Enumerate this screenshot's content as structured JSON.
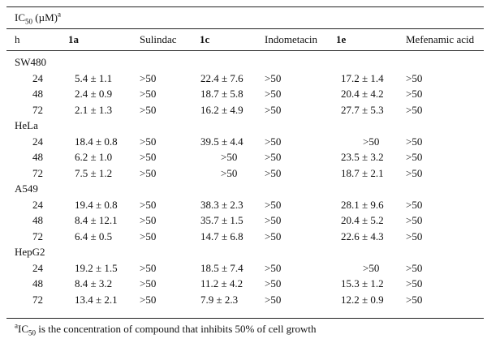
{
  "table": {
    "caption_base": "IC",
    "caption_sub": "50",
    "caption_unit": " (µM)",
    "caption_mark": "a",
    "columns": [
      "h",
      "1a",
      "Sulindac",
      "1c",
      "Indometacin",
      "1e",
      "Mefenamic acid"
    ],
    "groups": [
      {
        "name": "SW480",
        "rows": [
          {
            "h": "24",
            "c1a": "5.4 ± 1.1",
            "sulindac": ">50",
            "c1c": "22.4 ± 7.6",
            "indometacin": ">50",
            "c1e": "17.2 ± 1.4",
            "mefenamic": ">50"
          },
          {
            "h": "48",
            "c1a": "2.4 ± 0.9",
            "sulindac": ">50",
            "c1c": "18.7 ± 5.8",
            "indometacin": ">50",
            "c1e": "20.4 ± 4.2",
            "mefenamic": ">50"
          },
          {
            "h": "72",
            "c1a": "2.1 ± 1.3",
            "sulindac": ">50",
            "c1c": "16.2 ± 4.9",
            "indometacin": ">50",
            "c1e": "27.7 ± 5.3",
            "mefenamic": ">50"
          }
        ]
      },
      {
        "name": "HeLa",
        "rows": [
          {
            "h": "24",
            "c1a": "18.4 ± 0.8",
            "sulindac": ">50",
            "c1c": "39.5 ± 4.4",
            "indometacin": ">50",
            "c1e": ">50",
            "mefenamic": ">50"
          },
          {
            "h": "48",
            "c1a": "6.2 ± 1.0",
            "sulindac": ">50",
            "c1c": ">50",
            "indometacin": ">50",
            "c1e": "23.5 ± 3.2",
            "mefenamic": ">50"
          },
          {
            "h": "72",
            "c1a": "7.5 ± 1.2",
            "sulindac": ">50",
            "c1c": ">50",
            "indometacin": ">50",
            "c1e": "18.7 ± 2.1",
            "mefenamic": ">50"
          }
        ]
      },
      {
        "name": "A549",
        "rows": [
          {
            "h": "24",
            "c1a": "19.4 ± 0.8",
            "sulindac": ">50",
            "c1c": "38.3 ± 2.3",
            "indometacin": ">50",
            "c1e": "28.1 ± 9.6",
            "mefenamic": ">50"
          },
          {
            "h": "48",
            "c1a": "8.4 ± 12.1",
            "sulindac": ">50",
            "c1c": "35.7 ± 1.5",
            "indometacin": ">50",
            "c1e": "20.4 ± 5.2",
            "mefenamic": ">50"
          },
          {
            "h": "72",
            "c1a": "6.4 ± 0.5",
            "sulindac": ">50",
            "c1c": "14.7 ± 6.8",
            "indometacin": ">50",
            "c1e": "22.6 ± 4.3",
            "mefenamic": ">50"
          }
        ]
      },
      {
        "name": "HepG2",
        "rows": [
          {
            "h": "24",
            "c1a": "19.2 ± 1.5",
            "sulindac": ">50",
            "c1c": "18.5 ± 7.4",
            "indometacin": ">50",
            "c1e": ">50",
            "mefenamic": ">50"
          },
          {
            "h": "48",
            "c1a": "8.4 ± 3.2",
            "sulindac": ">50",
            "c1c": "11.2 ± 4.2",
            "indometacin": ">50",
            "c1e": "15.3 ± 1.2",
            "mefenamic": ">50"
          },
          {
            "h": "72",
            "c1a": "13.4 ± 2.1",
            "sulindac": ">50",
            "c1c": "7.9 ± 2.3",
            "indometacin": ">50",
            "c1e": "12.2 ± 0.9",
            "mefenamic": ">50"
          }
        ]
      }
    ]
  },
  "footnote": {
    "mark": "a",
    "base": "IC",
    "sub": "50",
    "text": " is the concentration of compound that inhibits 50% of cell growth"
  }
}
